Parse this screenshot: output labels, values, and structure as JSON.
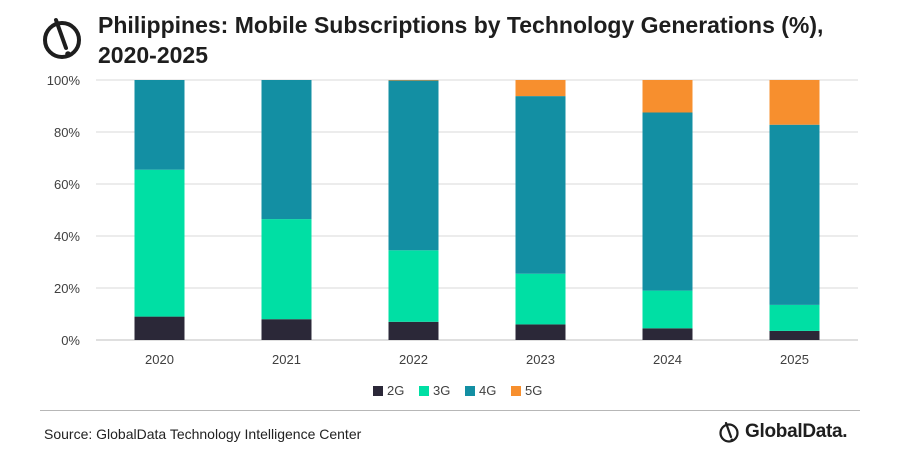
{
  "header": {
    "title": "Philippines: Mobile Subscriptions by Technology Generations (%), 2020-2025"
  },
  "chart_data": {
    "type": "bar",
    "stacked": true,
    "title": "Philippines: Mobile Subscriptions by Technology Generations (%), 2020-2025",
    "xlabel": "",
    "ylabel": "",
    "ylim": [
      0,
      100
    ],
    "yticks": [
      "0%",
      "20%",
      "40%",
      "60%",
      "80%",
      "100%"
    ],
    "categories": [
      "2020",
      "2021",
      "2022",
      "2023",
      "2024",
      "2025"
    ],
    "series": [
      {
        "name": "2G",
        "color": "#2b2838",
        "values": [
          9,
          8,
          7,
          6,
          4.5,
          3.5
        ]
      },
      {
        "name": "3G",
        "color": "#00dfa4",
        "values": [
          56.5,
          38.5,
          27.5,
          19.5,
          14.5,
          10
        ]
      },
      {
        "name": "4G",
        "color": "#138fa3",
        "values": [
          34.5,
          53.5,
          65.3,
          68.3,
          68.5,
          69.3
        ]
      },
      {
        "name": "5G",
        "color": "#f78f2e",
        "values": [
          0,
          0,
          0.2,
          6.2,
          12.5,
          17.2
        ]
      }
    ],
    "legend_position": "bottom",
    "grid": true
  },
  "footer": {
    "source": "Source: GlobalData Technology Intelligence Center",
    "brand": "GlobalData."
  }
}
